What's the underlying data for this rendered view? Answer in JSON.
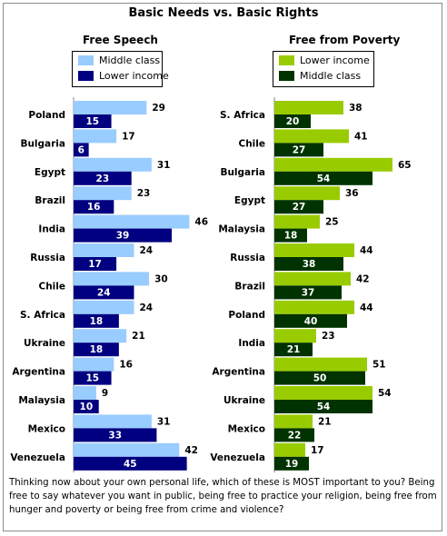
{
  "title": "Basic Needs vs. Basic Rights",
  "question": "Thinking now about your own personal life, which of these is MOST important to you?  Being free to say whatever you want in public, being free to practice your religion, being free from hunger and poverty or being free from crime and violence?",
  "colors": {
    "middle_class_left": "#99ccff",
    "lower_income_left": "#000080",
    "lower_income_right": "#99cc00",
    "middle_class_right": "#003300"
  },
  "chart_data": [
    {
      "type": "bar",
      "orientation": "horizontal",
      "title": "Free Speech",
      "categories": [
        "Poland",
        "Bulgaria",
        "Egypt",
        "Brazil",
        "India",
        "Russia",
        "Chile",
        "S. Africa",
        "Ukraine",
        "Argentina",
        "Malaysia",
        "Mexico",
        "Venezuela"
      ],
      "series": [
        {
          "name": "Middle class",
          "color": "#99ccff",
          "values": [
            29,
            17,
            31,
            23,
            46,
            24,
            30,
            24,
            21,
            16,
            9,
            31,
            42
          ]
        },
        {
          "name": "Lower income",
          "color": "#000080",
          "values": [
            15,
            6,
            23,
            16,
            39,
            17,
            24,
            18,
            18,
            15,
            10,
            33,
            45
          ]
        }
      ],
      "legend": [
        "Middle class",
        "Lower income"
      ]
    },
    {
      "type": "bar",
      "orientation": "horizontal",
      "title": "Free from Poverty",
      "categories": [
        "S. Africa",
        "Chile",
        "Bulgaria",
        "Egypt",
        "Malaysia",
        "Russia",
        "Brazil",
        "Poland",
        "India",
        "Argentina",
        "Ukraine",
        "Mexico",
        "Venezuela"
      ],
      "series": [
        {
          "name": "Lower income",
          "color": "#99cc00",
          "values": [
            38,
            41,
            65,
            36,
            25,
            44,
            42,
            44,
            23,
            51,
            54,
            21,
            17
          ]
        },
        {
          "name": "Middle class",
          "color": "#003300",
          "values": [
            20,
            27,
            54,
            27,
            18,
            38,
            37,
            40,
            21,
            50,
            54,
            22,
            19
          ]
        }
      ],
      "legend": [
        "Lower income",
        "Middle class"
      ]
    }
  ]
}
